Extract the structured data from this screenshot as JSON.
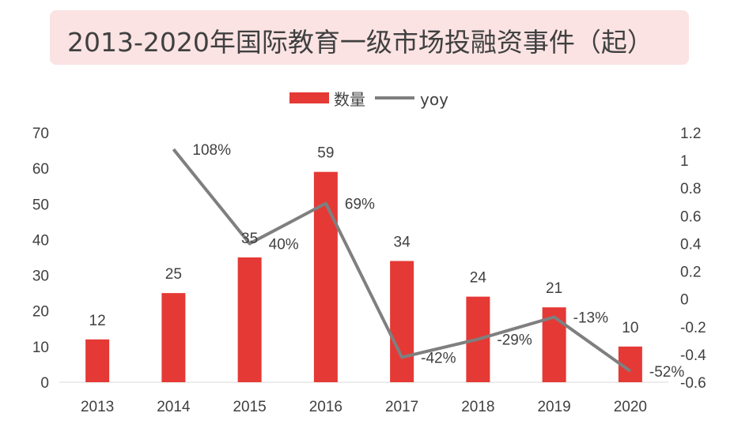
{
  "chart_data": {
    "type": "bar",
    "title": "2013-2020年国际教育一级市场投融资事件（起）",
    "categories": [
      "2013",
      "2014",
      "2015",
      "2016",
      "2017",
      "2018",
      "2019",
      "2020"
    ],
    "series": [
      {
        "name": "数量",
        "type": "bar",
        "axis": "left",
        "values": [
          12,
          25,
          35,
          59,
          34,
          24,
          21,
          10
        ],
        "labels": [
          "12",
          "25",
          "35",
          "59",
          "34",
          "24",
          "21",
          "10"
        ]
      },
      {
        "name": "yoy",
        "type": "line",
        "axis": "right",
        "values": [
          null,
          1.08,
          0.4,
          0.69,
          -0.42,
          -0.29,
          -0.13,
          -0.52
        ],
        "labels": [
          "",
          "108%",
          "40%",
          "69%",
          "-42%",
          "-29%",
          "-13%",
          "-52%"
        ]
      }
    ],
    "ylim": [
      0,
      70
    ],
    "yticks": [
      "0",
      "10",
      "20",
      "30",
      "40",
      "50",
      "60",
      "70"
    ],
    "y2lim": [
      -0.6,
      1.2
    ],
    "y2ticks": [
      "-0.6",
      "-0.4",
      "-0.2",
      "0",
      "0.2",
      "0.4",
      "0.6",
      "0.8",
      "1",
      "1.2"
    ],
    "colors": {
      "bar": "#e53935",
      "line": "#7f7f7f",
      "title_bg": "#fbe3e3"
    }
  }
}
